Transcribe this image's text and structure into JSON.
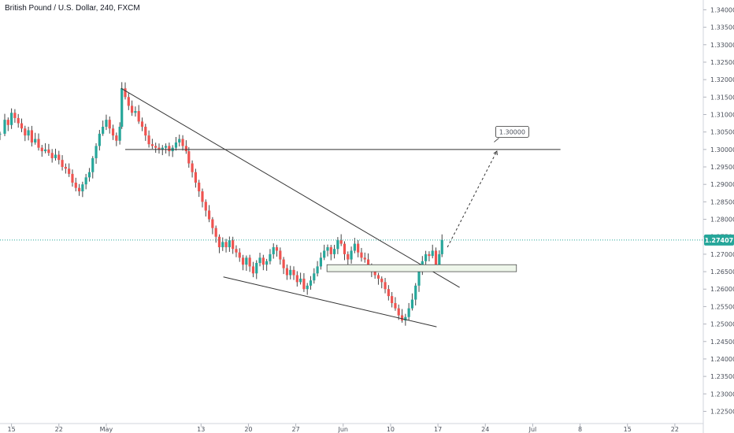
{
  "header": {
    "symbol": "British Pound / U.S. Dollar, 240, FXCM"
  },
  "colors": {
    "up": "#26a69a",
    "down": "#ef5350",
    "wick": "#444444",
    "price_line": "#26a69a",
    "price_badge": "#26a69a",
    "drawing": "#333333",
    "zone_fill": "#eef6ea"
  },
  "chart_data": {
    "type": "candlestick",
    "title": "British Pound / U.S. Dollar, 240, FXCM",
    "y_axis": {
      "position": "right",
      "range": [
        1.2215,
        1.341
      ],
      "ticks": [
        "1.34000",
        "1.33500",
        "1.33000",
        "1.32500",
        "1.32000",
        "1.31500",
        "1.31000",
        "1.30500",
        "1.30000",
        "1.29500",
        "1.29000",
        "1.28500",
        "1.28000",
        "1.27500",
        "1.27000",
        "1.26500",
        "1.26000",
        "1.25500",
        "1.25000",
        "1.24500",
        "1.24000",
        "1.23500",
        "1.23000",
        "1.22500"
      ]
    },
    "x_axis": {
      "ticks": [
        {
          "label": "15",
          "x": 15
        },
        {
          "label": "22",
          "x": 22
        },
        {
          "label": "May",
          "x": 29
        },
        {
          "label": "13",
          "x": 43
        },
        {
          "label": "20",
          "x": 50
        },
        {
          "label": "27",
          "x": 57
        },
        {
          "label": "Jun",
          "x": 64
        },
        {
          "label": "10",
          "x": 71
        },
        {
          "label": "17",
          "x": 78
        },
        {
          "label": "24",
          "x": 85
        },
        {
          "label": "Jul",
          "x": 92
        },
        {
          "label": "8",
          "x": 99
        },
        {
          "label": "15",
          "x": 106
        },
        {
          "label": "22",
          "x": 113
        }
      ],
      "range": [
        13.3,
        117.2
      ]
    },
    "grid": false,
    "last_price": "1.27407",
    "series": [
      {
        "type": "ohlc_path",
        "closes": [
          [
            13.3,
            1.3045
          ],
          [
            14,
            1.3085
          ],
          [
            14.5,
            1.307
          ],
          [
            15,
            1.3105
          ],
          [
            15.5,
            1.309
          ],
          [
            16,
            1.3075
          ],
          [
            16.5,
            1.306
          ],
          [
            17,
            1.304
          ],
          [
            17.5,
            1.3055
          ],
          [
            18,
            1.302
          ],
          [
            18.5,
            1.303
          ],
          [
            19,
            1.3005
          ],
          [
            19.5,
            1.2995
          ],
          [
            20,
            1.3
          ],
          [
            20.5,
            1.299
          ],
          [
            21,
            1.2975
          ],
          [
            21.5,
            1.2985
          ],
          [
            22,
            1.297
          ],
          [
            22.5,
            1.295
          ],
          [
            23,
            1.2945
          ],
          [
            23.5,
            1.293
          ],
          [
            24,
            1.2905
          ],
          [
            24.5,
            1.289
          ],
          [
            25,
            1.288
          ],
          [
            25.5,
            1.29
          ],
          [
            26,
            1.292
          ],
          [
            26.5,
            1.2935
          ],
          [
            27,
            1.2975
          ],
          [
            27.5,
            1.301
          ],
          [
            28,
            1.3045
          ],
          [
            28.5,
            1.3065
          ],
          [
            29,
            1.3085
          ],
          [
            29.5,
            1.306
          ],
          [
            30,
            1.304
          ],
          [
            30.5,
            1.3025
          ],
          [
            31,
            1.3065
          ],
          [
            31.3,
            1.3175
          ],
          [
            31.8,
            1.315
          ],
          [
            32.3,
            1.3125
          ],
          [
            32.8,
            1.3105
          ],
          [
            33.3,
            1.311
          ],
          [
            33.8,
            1.308
          ],
          [
            34.3,
            1.3065
          ],
          [
            34.8,
            1.304
          ],
          [
            35.3,
            1.3015
          ],
          [
            35.8,
            1.301
          ],
          [
            36.3,
            1.3005
          ],
          [
            36.8,
            1.3
          ],
          [
            37.3,
            1.3005
          ],
          [
            37.8,
            1.301
          ],
          [
            38.3,
            1.2995
          ],
          [
            38.8,
            1.3005
          ],
          [
            39.3,
            1.302
          ],
          [
            39.8,
            1.303
          ],
          [
            40.3,
            1.301
          ],
          [
            40.8,
            1.2995
          ],
          [
            41.2,
            1.296
          ],
          [
            41.7,
            1.2935
          ],
          [
            42.2,
            1.2905
          ],
          [
            42.7,
            1.288
          ],
          [
            43.2,
            1.285
          ],
          [
            43.7,
            1.2825
          ],
          [
            44.2,
            1.28
          ],
          [
            44.7,
            1.2775
          ],
          [
            45.2,
            1.275
          ],
          [
            45.7,
            1.272
          ],
          [
            46.2,
            1.2735
          ],
          [
            46.7,
            1.272
          ],
          [
            47.2,
            1.274
          ],
          [
            47.7,
            1.2715
          ],
          [
            48.2,
            1.2705
          ],
          [
            48.7,
            1.269
          ],
          [
            49.2,
            1.267
          ],
          [
            49.7,
            1.269
          ],
          [
            50.2,
            1.2665
          ],
          [
            50.7,
            1.2645
          ],
          [
            51.2,
            1.2675
          ],
          [
            51.7,
            1.269
          ],
          [
            52.2,
            1.267
          ],
          [
            52.7,
            1.268
          ],
          [
            53.2,
            1.27
          ],
          [
            53.7,
            1.272
          ],
          [
            54.2,
            1.271
          ],
          [
            54.7,
            1.2685
          ],
          [
            55.2,
            1.266
          ],
          [
            55.7,
            1.264
          ],
          [
            56.2,
            1.2655
          ],
          [
            56.7,
            1.264
          ],
          [
            57.2,
            1.262
          ],
          [
            57.7,
            1.263
          ],
          [
            58.2,
            1.26
          ],
          [
            58.7,
            1.261
          ],
          [
            59.2,
            1.2625
          ],
          [
            59.7,
            1.2645
          ],
          [
            60.2,
            1.2665
          ],
          [
            60.7,
            1.269
          ],
          [
            61.2,
            1.271
          ],
          [
            61.7,
            1.272
          ],
          [
            62.2,
            1.27
          ],
          [
            62.7,
            1.2715
          ],
          [
            63.2,
            1.274
          ],
          [
            63.7,
            1.273
          ],
          [
            64.2,
            1.27
          ],
          [
            64.7,
            1.2685
          ],
          [
            65.2,
            1.271
          ],
          [
            65.7,
            1.273
          ],
          [
            66.2,
            1.2705
          ],
          [
            66.7,
            1.269
          ],
          [
            67.2,
            1.2685
          ],
          [
            67.7,
            1.2665
          ],
          [
            68.2,
            1.265
          ],
          [
            68.7,
            1.264
          ],
          [
            69.2,
            1.263
          ],
          [
            69.7,
            1.262
          ],
          [
            70.2,
            1.26
          ],
          [
            70.7,
            1.258
          ],
          [
            71.2,
            1.256
          ],
          [
            71.7,
            1.2545
          ],
          [
            72.2,
            1.2525
          ],
          [
            72.7,
            1.251
          ],
          [
            73.2,
            1.252
          ],
          [
            73.7,
            1.2545
          ],
          [
            74.2,
            1.257
          ],
          [
            74.7,
            1.261
          ],
          [
            75.2,
            1.265
          ],
          [
            75.7,
            1.268
          ],
          [
            76.2,
            1.27
          ],
          [
            76.7,
            1.2695
          ],
          [
            77.2,
            1.271
          ],
          [
            77.7,
            1.267
          ],
          [
            78.2,
            1.27
          ],
          [
            78.6,
            1.2741
          ]
        ]
      }
    ],
    "annotations": {
      "horizontal_line_level": "1.30000",
      "target_label": "1.30000",
      "resistance_zone": "1.26500–1.26700",
      "trendlines": [
        "upper descending trendline",
        "lower descending trendline"
      ],
      "projection": "dashed arrow toward 1.30000"
    }
  }
}
